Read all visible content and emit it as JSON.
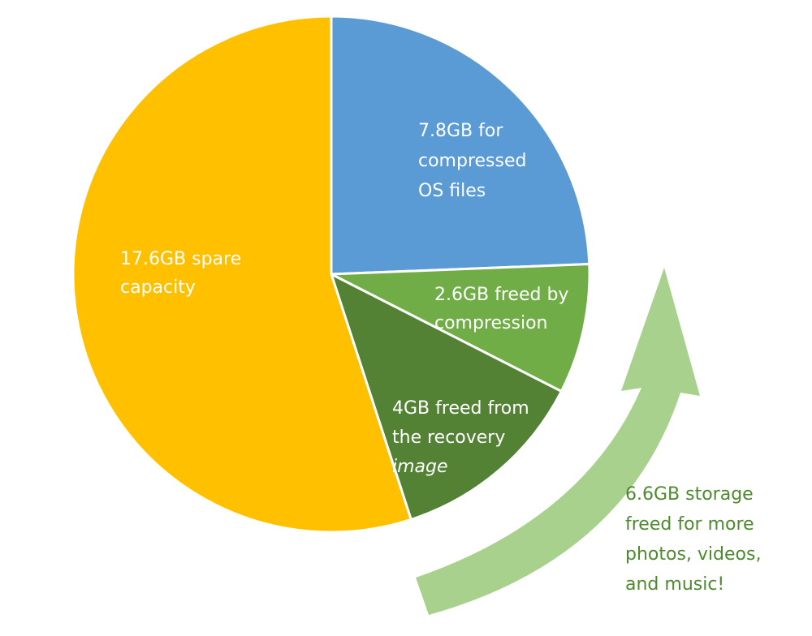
{
  "chart_data": {
    "type": "pie",
    "values": [
      7.8,
      2.6,
      4,
      17.6
    ],
    "value_labels": [
      [
        "7.8GB for",
        "compressed",
        "OS files"
      ],
      [
        "2.6GB freed by",
        "compression"
      ],
      [
        "4GB freed from",
        "the recovery",
        "image"
      ],
      [
        "17.6GB spare",
        "capacity"
      ]
    ],
    "colors": [
      "#5b9bd5",
      "#70ad47",
      "#548235",
      "#ffc000"
    ],
    "annotation": [
      "6.6GB storage",
      "freed for more",
      "photos, videos,",
      "and music!"
    ]
  }
}
